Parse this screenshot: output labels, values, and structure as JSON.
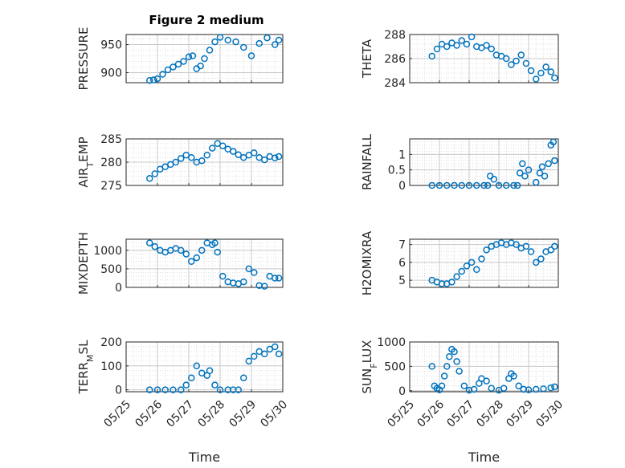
{
  "figure": {
    "title": "Figure 2 medium"
  },
  "chart_data": [
    {
      "type": "scatter",
      "title": "Figure 2 medium",
      "ylabel": "PRESSURE",
      "xlabel": "",
      "xlim": [
        "05/25",
        "05/30"
      ],
      "ylim": [
        882,
        968
      ],
      "yticks": [
        900,
        950
      ],
      "series": [
        {
          "x": [
            "05/25 18:00",
            "05/25 21:00",
            "05/26 00:00",
            "05/26 04:00",
            "05/26 08:00",
            "05/26 12:00",
            "05/26 16:00",
            "05/26 20:00",
            "05/27 00:00",
            "05/27 03:00",
            "05/27 06:00",
            "05/27 09:00",
            "05/27 12:00",
            "05/27 16:00",
            "05/27 20:00",
            "05/28 00:00",
            "05/28 06:00",
            "05/28 12:00",
            "05/28 18:00",
            "05/29 00:00",
            "05/29 06:00",
            "05/29 12:00",
            "05/29 18:00",
            "05/29 21:00"
          ],
          "y": [
            886,
            887,
            889,
            897,
            905,
            910,
            915,
            920,
            928,
            930,
            907,
            912,
            925,
            940,
            955,
            963,
            958,
            955,
            945,
            930,
            952,
            962,
            950,
            958
          ]
        }
      ]
    },
    {
      "type": "scatter",
      "ylabel": "THETA",
      "xlabel": "",
      "xlim": [
        "05/25",
        "05/30"
      ],
      "ylim": [
        284,
        288
      ],
      "yticks": [
        284,
        286,
        288
      ],
      "series": [
        {
          "x": [
            "05/25 18:00",
            "05/25 22:00",
            "05/26 02:00",
            "05/26 06:00",
            "05/26 10:00",
            "05/26 14:00",
            "05/26 18:00",
            "05/26 22:00",
            "05/27 02:00",
            "05/27 06:00",
            "05/27 10:00",
            "05/27 14:00",
            "05/27 18:00",
            "05/27 22:00",
            "05/28 02:00",
            "05/28 06:00",
            "05/28 10:00",
            "05/28 14:00",
            "05/28 18:00",
            "05/28 22:00",
            "05/29 02:00",
            "05/29 06:00",
            "05/29 10:00",
            "05/29 14:00",
            "05/29 18:00",
            "05/29 21:00"
          ],
          "y": [
            286.2,
            286.8,
            287.2,
            287.0,
            287.3,
            287.1,
            287.5,
            287.2,
            287.8,
            287.0,
            286.9,
            287.1,
            286.8,
            286.3,
            286.2,
            286.0,
            285.5,
            285.8,
            286.3,
            285.6,
            285.0,
            284.3,
            284.8,
            285.3,
            284.9,
            284.4
          ]
        }
      ]
    },
    {
      "type": "scatter",
      "ylabel": "AIR_TEMP",
      "xlabel": "",
      "xlim": [
        "05/25",
        "05/30"
      ],
      "ylim": [
        275,
        285
      ],
      "yticks": [
        275,
        280,
        285
      ],
      "series": [
        {
          "x": [
            "05/25 18:00",
            "05/25 22:00",
            "05/26 02:00",
            "05/26 06:00",
            "05/26 10:00",
            "05/26 14:00",
            "05/26 18:00",
            "05/26 22:00",
            "05/27 02:00",
            "05/27 06:00",
            "05/27 10:00",
            "05/27 14:00",
            "05/27 18:00",
            "05/27 22:00",
            "05/28 02:00",
            "05/28 06:00",
            "05/28 10:00",
            "05/28 14:00",
            "05/28 18:00",
            "05/28 22:00",
            "05/29 02:00",
            "05/29 06:00",
            "05/29 10:00",
            "05/29 14:00",
            "05/29 18:00",
            "05/29 21:00"
          ],
          "y": [
            276.5,
            277.5,
            278.5,
            279.0,
            279.5,
            280.0,
            280.8,
            281.5,
            281.0,
            280.0,
            280.3,
            281.5,
            283.0,
            284.0,
            283.5,
            282.8,
            282.3,
            281.6,
            281.0,
            281.5,
            282.0,
            281.0,
            280.5,
            281.2,
            280.9,
            281.2
          ]
        }
      ]
    },
    {
      "type": "scatter",
      "ylabel": "RAINFALL",
      "xlabel": "",
      "xlim": [
        "05/25",
        "05/30"
      ],
      "ylim": [
        0,
        1.5
      ],
      "yticks": [
        0,
        0.5,
        1
      ],
      "series": [
        {
          "x": [
            "05/25 18:00",
            "05/26 00:00",
            "05/26 06:00",
            "05/26 12:00",
            "05/26 18:00",
            "05/27 00:00",
            "05/27 06:00",
            "05/27 12:00",
            "05/27 15:00",
            "05/27 17:00",
            "05/27 20:00",
            "05/28 00:00",
            "05/28 06:00",
            "05/28 12:00",
            "05/28 15:00",
            "05/28 17:00",
            "05/28 19:00",
            "05/28 21:00",
            "05/29 00:00",
            "05/29 06:00",
            "05/29 09:00",
            "05/29 11:00",
            "05/29 13:00",
            "05/29 16:00",
            "05/29 18:00",
            "05/29 20:00",
            "05/29 21:00"
          ],
          "y": [
            0,
            0,
            0,
            0,
            0,
            0,
            0,
            0,
            0,
            0.3,
            0.2,
            0,
            0,
            0,
            0,
            0.4,
            0.7,
            0.3,
            0.5,
            0.1,
            0.4,
            0.6,
            0.3,
            0.7,
            1.3,
            1.4,
            0.8
          ]
        }
      ]
    },
    {
      "type": "scatter",
      "ylabel": "MIXDEPTH",
      "xlabel": "",
      "xlim": [
        "05/25",
        "05/30"
      ],
      "ylim": [
        0,
        1300
      ],
      "yticks": [
        0,
        500,
        1000
      ],
      "series": [
        {
          "x": [
            "05/25 18:00",
            "05/25 22:00",
            "05/26 02:00",
            "05/26 06:00",
            "05/26 10:00",
            "05/26 14:00",
            "05/26 18:00",
            "05/26 22:00",
            "05/27 02:00",
            "05/27 06:00",
            "05/27 10:00",
            "05/27 14:00",
            "05/27 18:00",
            "05/27 20:00",
            "05/27 22:00",
            "05/28 02:00",
            "05/28 06:00",
            "05/28 10:00",
            "05/28 14:00",
            "05/28 18:00",
            "05/28 22:00",
            "05/29 02:00",
            "05/29 06:00",
            "05/29 10:00",
            "05/29 14:00",
            "05/29 18:00",
            "05/29 21:00"
          ],
          "y": [
            1200,
            1100,
            1000,
            950,
            1000,
            1050,
            1000,
            900,
            700,
            800,
            1000,
            1200,
            1150,
            1200,
            950,
            300,
            150,
            120,
            100,
            150,
            500,
            400,
            50,
            30,
            300,
            250,
            250
          ]
        }
      ]
    },
    {
      "type": "scatter",
      "ylabel": "H2OMIXRA",
      "xlabel": "",
      "xlim": [
        "05/25",
        "05/30"
      ],
      "ylim": [
        4.6,
        7.3
      ],
      "yticks": [
        5,
        6,
        7
      ],
      "series": [
        {
          "x": [
            "05/25 18:00",
            "05/25 22:00",
            "05/26 02:00",
            "05/26 06:00",
            "05/26 10:00",
            "05/26 14:00",
            "05/26 18:00",
            "05/26 22:00",
            "05/27 02:00",
            "05/27 06:00",
            "05/27 10:00",
            "05/27 14:00",
            "05/27 18:00",
            "05/27 22:00",
            "05/28 02:00",
            "05/28 06:00",
            "05/28 10:00",
            "05/28 14:00",
            "05/28 18:00",
            "05/28 22:00",
            "05/29 02:00",
            "05/29 06:00",
            "05/29 10:00",
            "05/29 14:00",
            "05/29 18:00",
            "05/29 21:00"
          ],
          "y": [
            5.0,
            4.9,
            4.8,
            4.8,
            4.9,
            5.2,
            5.5,
            5.8,
            6.0,
            5.6,
            6.2,
            6.7,
            6.9,
            7.0,
            7.1,
            7.0,
            7.1,
            7.0,
            6.8,
            6.9,
            6.6,
            6.0,
            6.2,
            6.6,
            6.7,
            6.9
          ]
        }
      ]
    },
    {
      "type": "scatter",
      "ylabel": "TERR_MSL",
      "xlabel": "Time",
      "xlim": [
        "05/25",
        "05/30"
      ],
      "ylim": [
        -8,
        200
      ],
      "yticks": [
        0,
        100,
        200
      ],
      "xticks": [
        "05/25",
        "05/26",
        "05/27",
        "05/28",
        "05/29",
        "05/30"
      ],
      "series": [
        {
          "x": [
            "05/25 18:00",
            "05/26 00:00",
            "05/26 06:00",
            "05/26 12:00",
            "05/26 18:00",
            "05/26 22:00",
            "05/27 02:00",
            "05/27 06:00",
            "05/27 10:00",
            "05/27 14:00",
            "05/27 16:00",
            "05/27 20:00",
            "05/28 00:00",
            "05/28 06:00",
            "05/28 10:00",
            "05/28 14:00",
            "05/28 18:00",
            "05/28 22:00",
            "05/29 02:00",
            "05/29 06:00",
            "05/29 10:00",
            "05/29 14:00",
            "05/29 18:00",
            "05/29 21:00"
          ],
          "y": [
            0,
            0,
            0,
            0,
            0,
            20,
            50,
            100,
            70,
            60,
            80,
            20,
            0,
            0,
            0,
            0,
            50,
            120,
            140,
            160,
            150,
            170,
            180,
            150
          ]
        }
      ]
    },
    {
      "type": "scatter",
      "ylabel": "SUN_FLUX",
      "xlabel": "Time",
      "xlim": [
        "05/25",
        "05/30"
      ],
      "ylim": [
        -20,
        1000
      ],
      "yticks": [
        0,
        500,
        1000
      ],
      "xticks": [
        "05/25",
        "05/26",
        "05/27",
        "05/28",
        "05/29",
        "05/30"
      ],
      "series": [
        {
          "x": [
            "05/25 18:00",
            "05/25 20:00",
            "05/25 22:00",
            "05/26 00:00",
            "05/26 02:00",
            "05/26 04:00",
            "05/26 06:00",
            "05/26 08:00",
            "05/26 10:00",
            "05/26 12:00",
            "05/26 14:00",
            "05/26 16:00",
            "05/26 20:00",
            "05/27 00:00",
            "05/27 04:00",
            "05/27 08:00",
            "05/27 10:00",
            "05/27 14:00",
            "05/27 18:00",
            "05/28 00:00",
            "05/28 04:00",
            "05/28 08:00",
            "05/28 10:00",
            "05/28 12:00",
            "05/28 16:00",
            "05/28 20:00",
            "05/29 00:00",
            "05/29 06:00",
            "05/29 12:00",
            "05/29 18:00",
            "05/29 21:00"
          ],
          "y": [
            500,
            100,
            50,
            20,
            100,
            300,
            500,
            700,
            850,
            800,
            600,
            400,
            100,
            10,
            30,
            150,
            250,
            200,
            50,
            10,
            50,
            250,
            350,
            300,
            100,
            30,
            20,
            30,
            40,
            60,
            80
          ]
        }
      ]
    }
  ]
}
